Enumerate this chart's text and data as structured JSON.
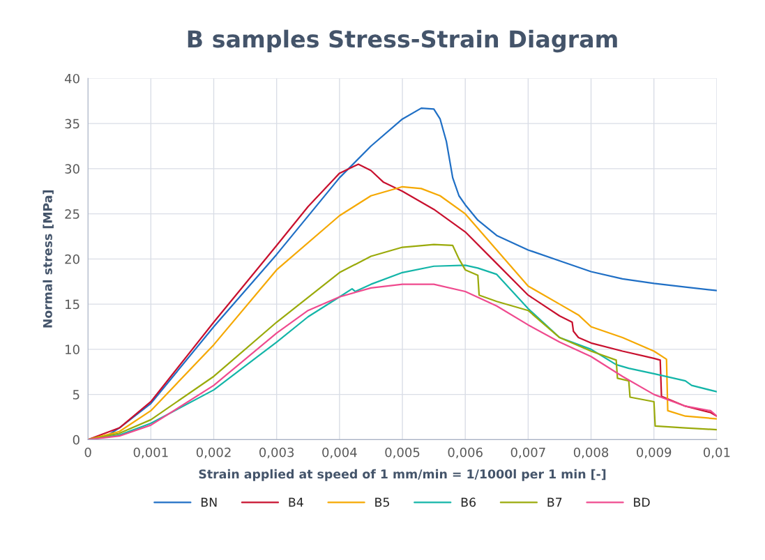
{
  "chart_data": {
    "type": "line",
    "title": "B samples Stress-Strain Diagram",
    "xlabel": "Strain applied at speed of 1 mm/min = 1/1000l per 1 min [-]",
    "ylabel": "Normal stress [MPa]",
    "xlim": [
      0,
      0.01
    ],
    "xticks": [
      0,
      {
        "value": 0.001,
        "label": "0,001"
      },
      {
        "value": 0.002,
        "label": "0,002"
      },
      {
        "value": 0.003,
        "label": "0,003"
      },
      {
        "value": 0.004,
        "label": "0,004"
      },
      {
        "value": 0.005,
        "label": "0,005"
      },
      {
        "value": 0.006,
        "label": "0,006"
      },
      {
        "value": 0.007,
        "label": "0,007"
      },
      {
        "value": 0.008,
        "label": "0,008"
      },
      {
        "value": 0.009,
        "label": "0,009"
      },
      {
        "value": 0.01,
        "label": "0,01"
      }
    ],
    "ylim": [
      0,
      40
    ],
    "yticks": [
      0,
      5,
      10,
      15,
      20,
      25,
      30,
      35,
      40
    ],
    "grid": true,
    "legend": "bottom",
    "marker": "none",
    "line_style": "solid",
    "series": [
      {
        "name": "BN",
        "color": "#1f6fc5",
        "x": [
          0,
          0.0003,
          0.0005,
          0.001,
          0.002,
          0.003,
          0.004,
          0.0045,
          0.005,
          0.0053,
          0.0055,
          0.0056,
          0.0057,
          0.0058,
          0.0059,
          0.006,
          0.0062,
          0.0065,
          0.007,
          0.0075,
          0.008,
          0.0085,
          0.009,
          0.0095,
          0.01
        ],
        "values": [
          0,
          0.4,
          1.3,
          4,
          12.5,
          20.5,
          29,
          32.5,
          35.5,
          36.7,
          36.6,
          35.5,
          33,
          29,
          27,
          26,
          24.3,
          22.6,
          21,
          19.8,
          18.6,
          17.8,
          17.3,
          16.9,
          16.5
        ]
      },
      {
        "name": "B4",
        "color": "#c8102e",
        "x": [
          0,
          0.0005,
          0.001,
          0.002,
          0.003,
          0.0035,
          0.004,
          0.0043,
          0.0045,
          0.0047,
          0.005,
          0.0055,
          0.006,
          0.0065,
          0.007,
          0.0075,
          0.0077,
          0.00772,
          0.0078,
          0.008,
          0.0085,
          0.009,
          0.0091,
          0.00912,
          0.0095,
          0.0099,
          0.01
        ],
        "values": [
          0,
          1.3,
          4.2,
          13,
          21.5,
          25.8,
          29.5,
          30.5,
          29.8,
          28.5,
          27.5,
          25.5,
          23,
          19.5,
          16,
          13.7,
          13,
          12,
          11.3,
          10.7,
          9.8,
          9,
          8.8,
          4.8,
          3.7,
          3,
          2.6
        ]
      },
      {
        "name": "B5",
        "color": "#f5a800",
        "x": [
          0,
          0.0005,
          0.001,
          0.002,
          0.003,
          0.004,
          0.0045,
          0.005,
          0.0053,
          0.0056,
          0.006,
          0.0065,
          0.007,
          0.0075,
          0.0078,
          0.008,
          0.0085,
          0.009,
          0.0092,
          0.00922,
          0.0095,
          0.01
        ],
        "values": [
          0,
          0.9,
          3.2,
          10.5,
          18.8,
          24.8,
          27,
          28,
          27.8,
          27,
          25,
          21,
          17,
          15,
          13.8,
          12.5,
          11.3,
          9.8,
          8.9,
          3.2,
          2.6,
          2.3
        ]
      },
      {
        "name": "B6",
        "color": "#13b5a8",
        "x": [
          0,
          0.0005,
          0.001,
          0.002,
          0.003,
          0.0035,
          0.004,
          0.0042,
          0.00425,
          0.0045,
          0.005,
          0.0055,
          0.006,
          0.0062,
          0.0065,
          0.007,
          0.0075,
          0.008,
          0.0084,
          0.0086,
          0.009,
          0.0095,
          0.0096,
          0.01
        ],
        "values": [
          0,
          0.5,
          1.8,
          5.5,
          10.8,
          13.6,
          15.8,
          16.7,
          16.4,
          17.2,
          18.5,
          19.2,
          19.3,
          19,
          18.3,
          14.5,
          11.3,
          10,
          8.3,
          7.9,
          7.3,
          6.5,
          6,
          5.3
        ]
      },
      {
        "name": "B7",
        "color": "#9aaa0a",
        "x": [
          0,
          0.0005,
          0.001,
          0.002,
          0.003,
          0.004,
          0.0045,
          0.005,
          0.0055,
          0.0058,
          0.0059,
          0.006,
          0.0062,
          0.00622,
          0.0065,
          0.007,
          0.0075,
          0.008,
          0.0084,
          0.00842,
          0.0086,
          0.00862,
          0.009,
          0.00902,
          0.0095,
          0.01
        ],
        "values": [
          0,
          0.7,
          2.2,
          7,
          13,
          18.5,
          20.3,
          21.3,
          21.6,
          21.5,
          20,
          18.8,
          18.2,
          16,
          15.3,
          14.3,
          11.3,
          9.8,
          8.8,
          6.8,
          6.5,
          4.7,
          4.2,
          1.5,
          1.3,
          1.1
        ]
      },
      {
        "name": "BD",
        "color": "#ef4a8e",
        "x": [
          0,
          0.0005,
          0.001,
          0.002,
          0.003,
          0.0035,
          0.004,
          0.0045,
          0.005,
          0.0055,
          0.006,
          0.0065,
          0.007,
          0.0075,
          0.008,
          0.0085,
          0.009,
          0.0095,
          0.0099,
          0.01
        ],
        "values": [
          0,
          0.4,
          1.6,
          6,
          11.8,
          14.3,
          15.8,
          16.8,
          17.2,
          17.2,
          16.4,
          14.8,
          12.7,
          10.8,
          9.2,
          7,
          5,
          3.7,
          3.2,
          2.6
        ]
      }
    ]
  }
}
